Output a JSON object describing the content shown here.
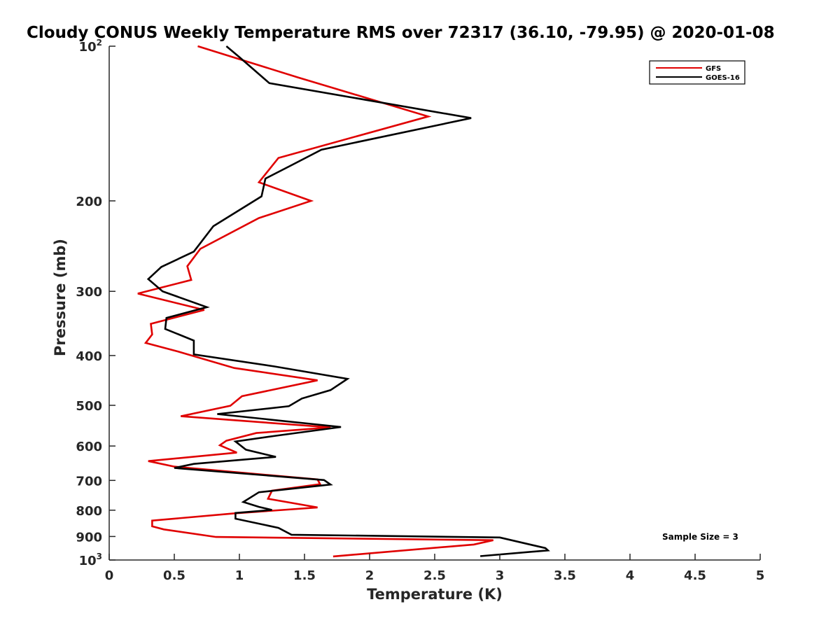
{
  "chart_data": {
    "type": "line",
    "title": "Cloudy CONUS Weekly Temperature RMS over 72317 (36.10, -79.95) @ 2020-01-08",
    "xlabel": "Temperature (K)",
    "ylabel": "Pressure (mb)",
    "xlim": [
      0,
      5
    ],
    "ylim": [
      100,
      1000
    ],
    "yscale": "log",
    "y_reversed": true,
    "grid": false,
    "legend_position": "top-right",
    "x_ticks": [
      0,
      0.5,
      1,
      1.5,
      2,
      2.5,
      3,
      3.5,
      4,
      4.5,
      5
    ],
    "x_tick_labels": [
      "0",
      "0.5",
      "1",
      "1.5",
      "2",
      "2.5",
      "3",
      "3.5",
      "4",
      "4.5",
      "5"
    ],
    "y_ticks": [
      {
        "value": 100,
        "label": "10",
        "sup": "2"
      },
      {
        "value": 200,
        "label": "200",
        "sup": ""
      },
      {
        "value": 300,
        "label": "300",
        "sup": ""
      },
      {
        "value": 400,
        "label": "400",
        "sup": ""
      },
      {
        "value": 500,
        "label": "500",
        "sup": ""
      },
      {
        "value": 600,
        "label": "600",
        "sup": ""
      },
      {
        "value": 700,
        "label": "700",
        "sup": ""
      },
      {
        "value": 800,
        "label": "800",
        "sup": ""
      },
      {
        "value": 900,
        "label": "900",
        "sup": ""
      },
      {
        "value": 1000,
        "label": "10",
        "sup": "3"
      }
    ],
    "annotation": "Sample Size = 3",
    "series": [
      {
        "name": "GFS",
        "color": "#e00000",
        "points": [
          [
            0.68,
            100
          ],
          [
            1.45,
            115
          ],
          [
            2.45,
            137
          ],
          [
            1.3,
            165
          ],
          [
            1.15,
            184
          ],
          [
            1.55,
            200
          ],
          [
            1.15,
            216
          ],
          [
            0.7,
            248
          ],
          [
            0.6,
            268
          ],
          [
            0.63,
            285
          ],
          [
            0.22,
            303
          ],
          [
            0.73,
            326
          ],
          [
            0.32,
            347
          ],
          [
            0.33,
            364
          ],
          [
            0.28,
            378
          ],
          [
            0.53,
            393
          ],
          [
            0.96,
            423
          ],
          [
            1.6,
            447
          ],
          [
            1.02,
            480
          ],
          [
            0.93,
            501
          ],
          [
            0.55,
            525
          ],
          [
            1.7,
            552
          ],
          [
            1.13,
            566
          ],
          [
            0.9,
            586
          ],
          [
            0.85,
            598
          ],
          [
            0.98,
            618
          ],
          [
            0.3,
            642
          ],
          [
            0.5,
            658
          ],
          [
            1.6,
            697
          ],
          [
            1.62,
            712
          ],
          [
            1.25,
            733
          ],
          [
            1.22,
            760
          ],
          [
            1.6,
            790
          ],
          [
            0.95,
            812
          ],
          [
            0.33,
            838
          ],
          [
            0.33,
            860
          ],
          [
            0.42,
            872
          ],
          [
            0.82,
            902
          ],
          [
            2.95,
            915
          ],
          [
            2.8,
            933
          ],
          [
            1.72,
            984
          ]
        ]
      },
      {
        "name": "GOES-16",
        "color": "#000000",
        "points": [
          [
            0.9,
            100
          ],
          [
            1.0,
            105
          ],
          [
            1.23,
            118
          ],
          [
            2.78,
            138
          ],
          [
            1.63,
            159
          ],
          [
            1.39,
            171
          ],
          [
            1.2,
            181
          ],
          [
            1.17,
            196
          ],
          [
            0.8,
            224
          ],
          [
            0.65,
            251
          ],
          [
            0.4,
            269
          ],
          [
            0.3,
            284
          ],
          [
            0.41,
            300
          ],
          [
            0.75,
            322
          ],
          [
            0.44,
            338
          ],
          [
            0.43,
            355
          ],
          [
            0.65,
            374
          ],
          [
            0.65,
            398
          ],
          [
            1.27,
            420
          ],
          [
            1.83,
            444
          ],
          [
            1.7,
            467
          ],
          [
            1.48,
            485
          ],
          [
            1.38,
            502
          ],
          [
            0.83,
            520
          ],
          [
            1.78,
            551
          ],
          [
            1.28,
            573
          ],
          [
            0.97,
            588
          ],
          [
            1.05,
            610
          ],
          [
            1.28,
            630
          ],
          [
            0.65,
            650
          ],
          [
            0.5,
            662
          ],
          [
            1.65,
            699
          ],
          [
            1.7,
            713
          ],
          [
            1.15,
            738
          ],
          [
            1.03,
            771
          ],
          [
            1.15,
            788
          ],
          [
            1.25,
            799
          ],
          [
            0.97,
            810
          ],
          [
            0.97,
            831
          ],
          [
            1.3,
            866
          ],
          [
            1.4,
            893
          ],
          [
            3.0,
            904
          ],
          [
            3.35,
            948
          ],
          [
            3.37,
            958
          ],
          [
            2.85,
            983
          ]
        ]
      }
    ]
  }
}
